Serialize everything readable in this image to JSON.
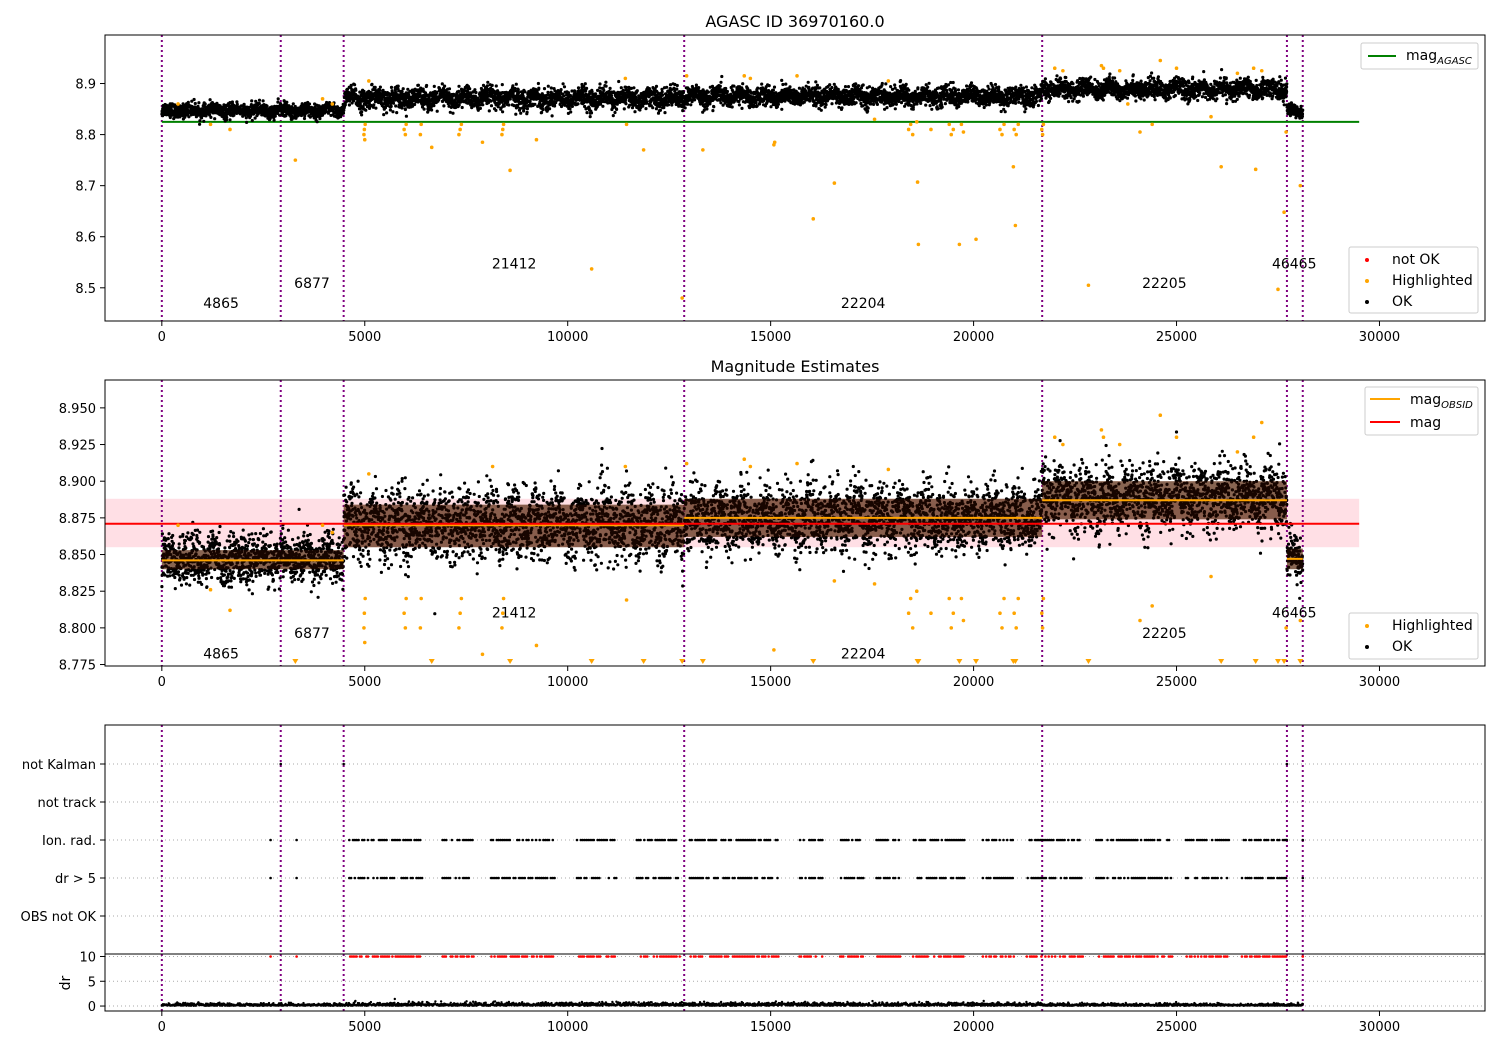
{
  "chart_data": [
    {
      "type": "scatter",
      "title": "AGASC ID 36970160.0",
      "xlim": [
        -1400,
        32600
      ],
      "ylim": [
        8.435,
        8.995
      ],
      "x_ticks": [
        0,
        5000,
        10000,
        15000,
        20000,
        25000,
        30000
      ],
      "x_tick_labels": [
        "0",
        "5000",
        "10000",
        "15000",
        "20000",
        "25000",
        "30000"
      ],
      "y_ticks": [
        8.5,
        8.6,
        8.7,
        8.8,
        8.9
      ],
      "y_tick_labels": [
        "8.5",
        "8.6",
        "8.7",
        "8.8",
        "8.9"
      ],
      "obsid_boundaries": [
        0,
        2930,
        4480,
        12870,
        21690,
        27720,
        28110
      ],
      "obsid_labels": [
        {
          "text": "4865",
          "x": 1460,
          "y": 8.46
        },
        {
          "text": "6877",
          "x": 3700,
          "y": 8.5
        },
        {
          "text": "21412",
          "x": 8680,
          "y": 8.538
        },
        {
          "text": "22204",
          "x": 17280,
          "y": 8.46
        },
        {
          "text": "22205",
          "x": 24700,
          "y": 8.5
        },
        {
          "text": "46465",
          "x": 27900,
          "y": 8.538
        }
      ],
      "reference_line": {
        "name": "mag_AGASC",
        "value": 8.825,
        "x_range": [
          0,
          29500
        ],
        "color": "#008000"
      },
      "segments": [
        {
          "x0": 0,
          "x1": 2930,
          "center": 8.847,
          "spread": 0.008
        },
        {
          "x0": 2930,
          "x1": 4480,
          "center": 8.847,
          "spread": 0.008
        },
        {
          "x0": 4480,
          "x1": 12870,
          "center": 8.871,
          "spread": 0.012
        },
        {
          "x0": 12870,
          "x1": 21690,
          "center": 8.875,
          "spread": 0.011
        },
        {
          "x0": 21690,
          "x1": 27720,
          "center": 8.889,
          "spread": 0.011
        },
        {
          "x0": 27720,
          "x1": 28110,
          "center": 8.847,
          "spread": 0.008
        }
      ],
      "highlighted_points": [
        [
          4980,
          8.8
        ],
        [
          4990,
          8.81
        ],
        [
          5000,
          8.79
        ],
        [
          5010,
          8.82
        ],
        [
          5970,
          8.81
        ],
        [
          6000,
          8.8
        ],
        [
          6020,
          8.82
        ],
        [
          6370,
          8.8
        ],
        [
          6390,
          8.82
        ],
        [
          6650,
          8.775
        ],
        [
          7320,
          8.8
        ],
        [
          7350,
          8.81
        ],
        [
          7380,
          8.82
        ],
        [
          7900,
          8.785
        ],
        [
          8380,
          8.8
        ],
        [
          8400,
          8.81
        ],
        [
          8420,
          8.82
        ],
        [
          8580,
          8.73
        ],
        [
          9230,
          8.79
        ],
        [
          10590,
          8.537
        ],
        [
          11450,
          8.82
        ],
        [
          11870,
          8.77
        ],
        [
          12820,
          8.48
        ],
        [
          13330,
          8.77
        ],
        [
          15080,
          8.78
        ],
        [
          15100,
          8.785
        ],
        [
          16050,
          8.635
        ],
        [
          16570,
          8.705
        ],
        [
          17560,
          8.83
        ],
        [
          18400,
          8.81
        ],
        [
          18450,
          8.82
        ],
        [
          18500,
          8.8
        ],
        [
          18600,
          8.825
        ],
        [
          18620,
          8.707
        ],
        [
          18640,
          8.585
        ],
        [
          18950,
          8.81
        ],
        [
          19400,
          8.82
        ],
        [
          19450,
          8.8
        ],
        [
          19500,
          8.81
        ],
        [
          19650,
          8.585
        ],
        [
          19700,
          8.82
        ],
        [
          19750,
          8.805
        ],
        [
          20060,
          8.595
        ],
        [
          20650,
          8.81
        ],
        [
          20700,
          8.8
        ],
        [
          20750,
          8.82
        ],
        [
          21000,
          8.81
        ],
        [
          21050,
          8.8
        ],
        [
          21100,
          8.82
        ],
        [
          20980,
          8.737
        ],
        [
          21030,
          8.622
        ],
        [
          21680,
          8.81
        ],
        [
          21700,
          8.8
        ],
        [
          21720,
          8.82
        ],
        [
          22830,
          8.505
        ],
        [
          23150,
          8.935
        ],
        [
          23200,
          8.93
        ],
        [
          23600,
          8.925
        ],
        [
          23800,
          8.86
        ],
        [
          24100,
          8.805
        ],
        [
          24400,
          8.82
        ],
        [
          24600,
          8.945
        ],
        [
          25000,
          8.93
        ],
        [
          25850,
          8.835
        ],
        [
          26100,
          8.737
        ],
        [
          26900,
          8.93
        ],
        [
          26950,
          8.732
        ],
        [
          27100,
          8.925
        ],
        [
          27500,
          8.497
        ],
        [
          27650,
          8.648
        ],
        [
          27700,
          8.805
        ],
        [
          28050,
          8.7
        ],
        [
          22000,
          8.93
        ],
        [
          22200,
          8.925
        ],
        [
          26500,
          8.92
        ],
        [
          400,
          8.86
        ],
        [
          1200,
          8.82
        ],
        [
          1680,
          8.81
        ],
        [
          3290,
          8.75
        ],
        [
          3960,
          8.87
        ],
        [
          4200,
          8.86
        ],
        [
          5100,
          8.905
        ],
        [
          11420,
          8.91
        ],
        [
          12930,
          8.915
        ],
        [
          14350,
          8.915
        ],
        [
          14500,
          8.91
        ],
        [
          15650,
          8.915
        ],
        [
          17900,
          8.905
        ]
      ],
      "legend": {
        "upper": [
          {
            "label": "mag",
            "subscript": "AGASC",
            "color": "#008000",
            "kind": "line"
          }
        ],
        "lower": [
          {
            "label": "not OK",
            "color": "#ff0000",
            "kind": "marker"
          },
          {
            "label": "Highlighted",
            "color": "#ffa500",
            "kind": "marker"
          },
          {
            "label": "OK",
            "color": "#000000",
            "kind": "marker"
          }
        ],
        "upper_placement": "top-right",
        "lower_placement": "bottom-right"
      }
    },
    {
      "type": "scatter",
      "title": "Magnitude Estimates",
      "xlim": [
        -1400,
        32600
      ],
      "ylim": [
        8.774,
        8.969
      ],
      "x_ticks": [
        0,
        5000,
        10000,
        15000,
        20000,
        25000,
        30000
      ],
      "x_tick_labels": [
        "0",
        "5000",
        "10000",
        "15000",
        "20000",
        "25000",
        "30000"
      ],
      "y_ticks": [
        8.775,
        8.8,
        8.825,
        8.85,
        8.875,
        8.9,
        8.925,
        8.95
      ],
      "y_tick_labels": [
        "8.775",
        "8.800",
        "8.825",
        "8.850",
        "8.875",
        "8.900",
        "8.925",
        "8.950"
      ],
      "obsid_boundaries": [
        0,
        2930,
        4480,
        12870,
        21690,
        27720,
        28110
      ],
      "obsid_labels": [
        {
          "text": "4865",
          "x": 1460,
          "y": 8.779
        },
        {
          "text": "6877",
          "x": 3700,
          "y": 8.793
        },
        {
          "text": "21412",
          "x": 8680,
          "y": 8.807
        },
        {
          "text": "22204",
          "x": 17280,
          "y": 8.779
        },
        {
          "text": "22205",
          "x": 24700,
          "y": 8.793
        },
        {
          "text": "46465",
          "x": 27900,
          "y": 8.807
        }
      ],
      "mag_line": {
        "name": "mag",
        "value": 8.871,
        "band": [
          8.855,
          8.888
        ],
        "x_range": [
          -1400,
          29500
        ],
        "color": "#ff0000"
      },
      "obsid_mags": [
        {
          "x0": 0,
          "x1": 2930,
          "value": 8.846,
          "band": [
            8.84,
            8.853
          ]
        },
        {
          "x0": 2930,
          "x1": 4480,
          "value": 8.846,
          "band": [
            8.84,
            8.853
          ]
        },
        {
          "x0": 4480,
          "x1": 12870,
          "value": 8.87,
          "band": [
            8.855,
            8.884
          ]
        },
        {
          "x0": 12870,
          "x1": 21690,
          "value": 8.875,
          "band": [
            8.862,
            8.888
          ]
        },
        {
          "x0": 21690,
          "x1": 27720,
          "value": 8.887,
          "band": [
            8.874,
            8.9
          ]
        },
        {
          "x0": 27720,
          "x1": 28110,
          "value": 8.847,
          "band": [
            8.84,
            8.854
          ]
        }
      ],
      "segments": [
        {
          "x0": 0,
          "x1": 2930,
          "center": 8.847,
          "spread": 0.008
        },
        {
          "x0": 2930,
          "x1": 4480,
          "center": 8.847,
          "spread": 0.008
        },
        {
          "x0": 4480,
          "x1": 12870,
          "center": 8.871,
          "spread": 0.012
        },
        {
          "x0": 12870,
          "x1": 21690,
          "center": 8.875,
          "spread": 0.011
        },
        {
          "x0": 21690,
          "x1": 27720,
          "center": 8.889,
          "spread": 0.011
        },
        {
          "x0": 27720,
          "x1": 28110,
          "center": 8.847,
          "spread": 0.008
        }
      ],
      "highlighted_points": [
        [
          4980,
          8.8
        ],
        [
          4990,
          8.81
        ],
        [
          5000,
          8.79
        ],
        [
          5010,
          8.82
        ],
        [
          5970,
          8.81
        ],
        [
          6000,
          8.8
        ],
        [
          6020,
          8.82
        ],
        [
          6370,
          8.8
        ],
        [
          6390,
          8.82
        ],
        [
          7320,
          8.8
        ],
        [
          7350,
          8.81
        ],
        [
          7380,
          8.82
        ],
        [
          7900,
          8.782
        ],
        [
          8380,
          8.8
        ],
        [
          8400,
          8.81
        ],
        [
          8420,
          8.82
        ],
        [
          9230,
          8.788
        ],
        [
          11450,
          8.819
        ],
        [
          15080,
          8.785
        ],
        [
          16570,
          8.832
        ],
        [
          17560,
          8.83
        ],
        [
          18400,
          8.81
        ],
        [
          18450,
          8.82
        ],
        [
          18500,
          8.8
        ],
        [
          18600,
          8.825
        ],
        [
          18950,
          8.81
        ],
        [
          19400,
          8.82
        ],
        [
          19450,
          8.8
        ],
        [
          19500,
          8.81
        ],
        [
          19700,
          8.82
        ],
        [
          19750,
          8.805
        ],
        [
          20650,
          8.81
        ],
        [
          20700,
          8.8
        ],
        [
          20750,
          8.82
        ],
        [
          21000,
          8.81
        ],
        [
          21050,
          8.8
        ],
        [
          21100,
          8.82
        ],
        [
          21680,
          8.81
        ],
        [
          21700,
          8.8
        ],
        [
          21720,
          8.82
        ],
        [
          22000,
          8.93
        ],
        [
          22200,
          8.925
        ],
        [
          23150,
          8.935
        ],
        [
          23200,
          8.93
        ],
        [
          23600,
          8.925
        ],
        [
          24100,
          8.805
        ],
        [
          24400,
          8.815
        ],
        [
          24600,
          8.945
        ],
        [
          25000,
          8.93
        ],
        [
          25850,
          8.835
        ],
        [
          26500,
          8.92
        ],
        [
          26900,
          8.93
        ],
        [
          27100,
          8.94
        ],
        [
          27700,
          8.8
        ],
        [
          28050,
          8.805
        ],
        [
          400,
          8.87
        ],
        [
          1200,
          8.826
        ],
        [
          1680,
          8.812
        ],
        [
          3960,
          8.87
        ],
        [
          4200,
          8.865
        ],
        [
          5100,
          8.905
        ],
        [
          11420,
          8.91
        ],
        [
          12930,
          8.912
        ],
        [
          14350,
          8.915
        ],
        [
          14500,
          8.91
        ],
        [
          15650,
          8.912
        ],
        [
          17900,
          8.908
        ],
        [
          8150,
          8.91
        ]
      ],
      "below_range_markers": [
        3290,
        6650,
        8580,
        10590,
        11870,
        12820,
        13330,
        16050,
        18620,
        18640,
        19650,
        20060,
        20980,
        21030,
        22830,
        26100,
        26950,
        27500,
        27650,
        28050
      ],
      "legend": {
        "upper": [
          {
            "label": "mag",
            "subscript": "OBSID",
            "color": "#ffa500",
            "kind": "line"
          },
          {
            "label": "mag",
            "subscript": "",
            "color": "#ff0000",
            "kind": "line"
          }
        ],
        "lower": [
          {
            "label": "Highlighted",
            "color": "#ffa500",
            "kind": "marker"
          },
          {
            "label": "OK",
            "color": "#000000",
            "kind": "marker"
          }
        ],
        "upper_placement": "top-right",
        "lower_placement": "bottom-right"
      }
    },
    {
      "type": "scatter",
      "title": "",
      "xlim": [
        -1400,
        32600
      ],
      "categories": [
        "not Kalman",
        "not track",
        "Ion. rad.",
        "dr > 5",
        "OBS not OK"
      ],
      "flag_regions": [
        [
          4480,
          12870
        ],
        [
          12870,
          21690
        ],
        [
          21690,
          27720
        ]
      ],
      "flag_gaps": [
        [
          4480,
          4600
        ],
        [
          6450,
          6900
        ],
        [
          7700,
          8100
        ],
        [
          9700,
          10200
        ],
        [
          11200,
          11700
        ],
        [
          12800,
          13000
        ],
        [
          15200,
          15700
        ],
        [
          16300,
          16700
        ],
        [
          17300,
          17600
        ],
        [
          18200,
          18500
        ],
        [
          19800,
          20200
        ],
        [
          21000,
          21300
        ],
        [
          22700,
          23000
        ],
        [
          24900,
          25200
        ],
        [
          26300,
          26600
        ]
      ],
      "flag_isolated": {
        "Ion. rad.": [
          2680,
          3320,
          27700,
          28110
        ],
        "dr > 5": [
          2680,
          3320,
          27700,
          28110
        ],
        "not Kalman": [
          2930,
          4480,
          27720
        ]
      },
      "obsid_boundaries": [
        0,
        2930,
        4480,
        12870,
        21690,
        27720,
        28110
      ],
      "ylabel": "dr",
      "dr_y_ticks": [
        0,
        5,
        10
      ],
      "dr_y_tick_labels": [
        "0",
        "5",
        "10"
      ],
      "dr_ylim": [
        -1,
        10.5
      ],
      "dr_clipped_value": 10,
      "dr_typical_max": 0.8,
      "x_ticks": [
        0,
        5000,
        10000,
        15000,
        20000,
        25000,
        30000
      ],
      "x_tick_labels": [
        "0",
        "5000",
        "10000",
        "15000",
        "20000",
        "25000",
        "30000"
      ]
    }
  ],
  "colors": {
    "ok": "#000000",
    "highlighted": "#ffa500",
    "not_ok": "#ff0000",
    "obsid_boundary": "#800080",
    "agasc_line": "#008000",
    "mag_line": "#ff0000",
    "mag_band": "#ffc0cb",
    "obsid_band": "#f4a460",
    "segment_dark": "#2a0a00"
  }
}
